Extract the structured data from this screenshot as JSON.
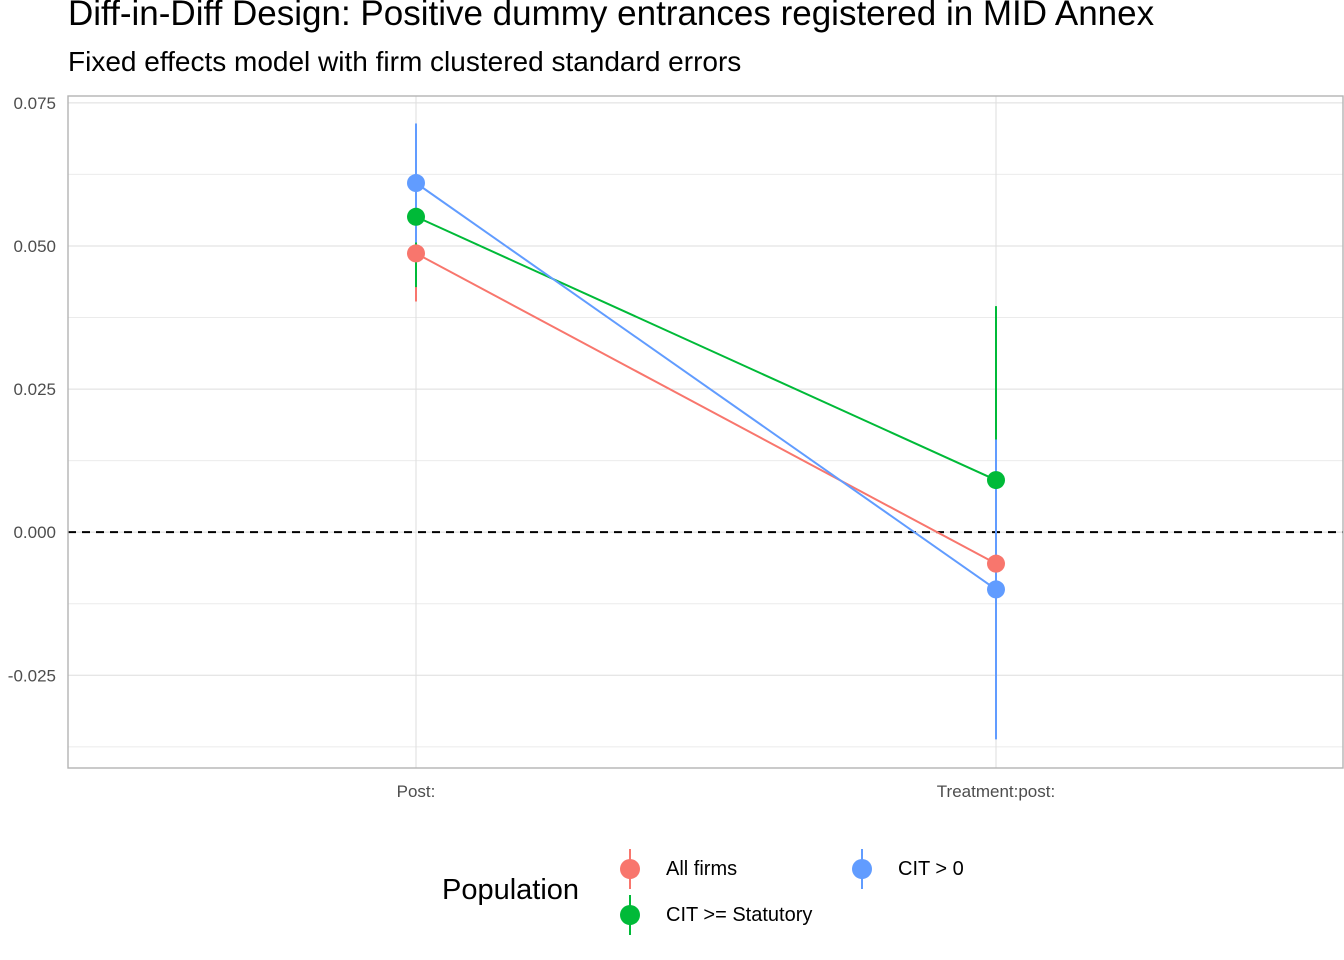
{
  "chart_data": {
    "type": "scatter",
    "title": "Diff-in-Diff Design: Positive dummy entrances registered in MID Annex",
    "subtitle": "Fixed effects model with firm clustered standard errors",
    "xlabel": "",
    "ylabel": "",
    "categories": [
      "Post:",
      "Treatment:post:"
    ],
    "y_ticks": [
      "0.075",
      "0.050",
      "0.025",
      "0.000",
      "-0.025"
    ],
    "ylim": [
      -0.0412,
      0.0762
    ],
    "reference_line": 0,
    "grid": true,
    "legend_title": "Population",
    "legend_position": "bottom",
    "series": [
      {
        "name": "All firms",
        "color": "#F8766D",
        "values": [
          0.0487,
          -0.0055
        ],
        "lower": [
          0.0403,
          -0.007
        ],
        "upper": [
          0.0571,
          -0.004
        ]
      },
      {
        "name": "CIT >= Statutory",
        "color": "#00BA38",
        "values": [
          0.0551,
          0.0091
        ],
        "lower": [
          0.0428,
          -0.0215
        ],
        "upper": [
          0.0674,
          0.0395
        ]
      },
      {
        "name": "CIT > 0",
        "color": "#619CFF",
        "values": [
          0.061,
          -0.01
        ],
        "lower": [
          0.0506,
          -0.0362
        ],
        "upper": [
          0.0714,
          0.0162
        ]
      }
    ]
  }
}
